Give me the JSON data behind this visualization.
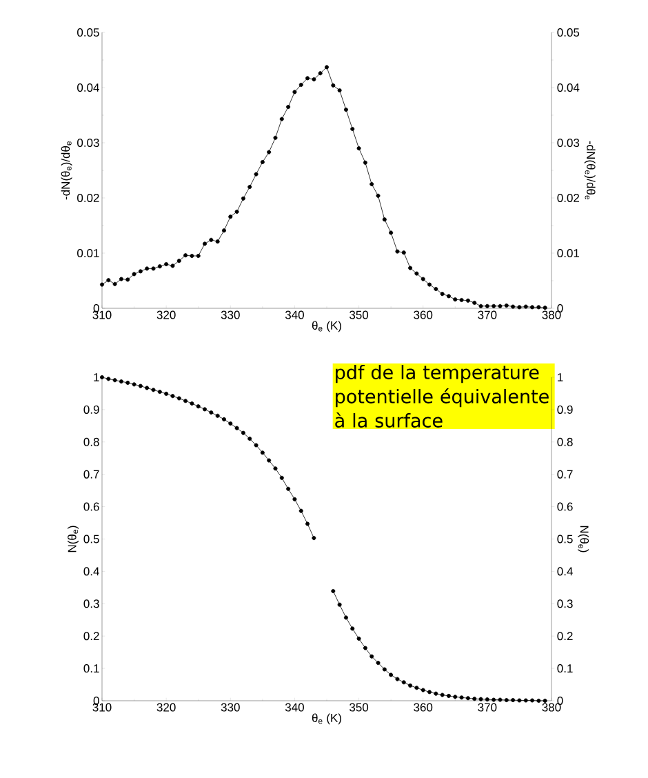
{
  "chart_data": [
    {
      "type": "line",
      "xlabel": "θ$_{e}$ (K)",
      "ylabel": "-dN(θ$_{e}$)/dθ$_{e}$",
      "y2label": "-dN(θ$_{e}$)/dθ$_{e}$",
      "x": [
        310,
        311,
        312,
        313,
        314,
        315,
        316,
        317,
        318,
        319,
        320,
        321,
        322,
        323,
        324,
        325,
        326,
        327,
        328,
        329,
        330,
        331,
        332,
        333,
        334,
        335,
        336,
        337,
        338,
        339,
        340,
        341,
        342,
        343,
        344,
        345,
        346,
        347,
        348,
        349,
        350,
        351,
        352,
        353,
        354,
        355,
        356,
        357,
        358,
        359,
        360,
        361,
        362,
        363,
        364,
        365,
        366,
        367,
        368,
        369,
        370,
        371,
        372,
        373,
        374,
        375,
        376,
        377,
        378,
        379
      ],
      "series": [
        {
          "color": "#000000",
          "values": [
            0.0043,
            0.0051,
            0.0044,
            0.0053,
            0.0052,
            0.0062,
            0.0067,
            0.0072,
            0.0072,
            0.0076,
            0.008,
            0.0077,
            0.0086,
            0.0096,
            0.0095,
            0.0095,
            0.0117,
            0.0124,
            0.0121,
            0.0141,
            0.0166,
            0.0175,
            0.0199,
            0.022,
            0.0243,
            0.0265,
            0.0283,
            0.0309,
            0.0343,
            0.0365,
            0.0392,
            0.0405,
            0.0417,
            0.0415,
            0.0426,
            0.0437,
            0.0404,
            0.0395,
            0.036,
            0.0325,
            0.029,
            0.0264,
            0.0225,
            0.0204,
            0.0161,
            0.0137,
            0.0103,
            0.0101,
            0.0073,
            0.0063,
            0.0053,
            0.0043,
            0.0035,
            0.0026,
            0.0022,
            0.0016,
            0.0015,
            0.0014,
            0.001,
            0.0004,
            0.0004,
            0.0004,
            0.0004,
            0.0005,
            0.0003,
            0.0002,
            0.0003,
            0.0002,
            0.0002,
            0.0001
          ]
        }
      ],
      "xlim": [
        310,
        380
      ],
      "xticks": [
        310,
        320,
        330,
        340,
        350,
        360,
        370,
        380
      ],
      "ylim": [
        0,
        0.05
      ],
      "yticks": [
        0,
        0.01,
        0.02,
        0.03,
        0.04,
        0.05
      ],
      "y2lim": [
        0,
        0.05
      ],
      "y2ticks": [
        0,
        0.01,
        0.02,
        0.03,
        0.04,
        0.05
      ],
      "marker": "circle",
      "line_style": "solid"
    },
    {
      "type": "line",
      "xlabel": "θ$_{e}$ (K)",
      "ylabel": "N(θ$_{e}$)",
      "y2label": "N(θ$_{e}$)",
      "x": [
        310,
        311,
        312,
        313,
        314,
        315,
        316,
        317,
        318,
        319,
        320,
        321,
        322,
        323,
        324,
        325,
        326,
        327,
        328,
        329,
        330,
        331,
        332,
        333,
        334,
        335,
        336,
        337,
        338,
        339,
        340,
        341,
        342,
        343,
        344,
        345,
        346,
        347,
        348,
        349,
        350,
        351,
        352,
        353,
        354,
        355,
        356,
        357,
        358,
        359,
        360,
        361,
        362,
        363,
        364,
        365,
        366,
        367,
        368,
        369,
        370,
        371,
        372,
        373,
        374,
        375,
        376,
        377,
        378,
        379
      ],
      "series": [
        {
          "color": "#000000",
          "values": [
            1.0,
            0.995,
            0.991,
            0.987,
            0.983,
            0.978,
            0.973,
            0.967,
            0.961,
            0.955,
            0.949,
            0.942,
            0.935,
            0.927,
            0.919,
            0.91,
            0.901,
            0.891,
            0.881,
            0.87,
            0.857,
            0.843,
            0.828,
            0.81,
            0.79,
            0.767,
            0.743,
            0.718,
            0.689,
            0.655,
            0.623,
            0.587,
            0.547,
            0.503,
            null,
            null,
            0.339,
            0.297,
            0.257,
            0.223,
            0.192,
            0.163,
            0.137,
            0.117,
            0.097,
            0.08,
            0.067,
            0.057,
            0.047,
            0.04,
            0.033,
            0.027,
            0.022,
            0.018,
            0.015,
            0.012,
            0.01,
            0.008,
            0.006,
            0.005,
            0.004,
            0.003,
            0.003,
            0.002,
            0.002,
            0.001,
            0.001,
            0.001,
            0.0,
            0.0
          ]
        }
      ],
      "xlim": [
        310,
        380
      ],
      "xticks": [
        310,
        320,
        330,
        340,
        350,
        360,
        370,
        380
      ],
      "ylim": [
        0,
        1
      ],
      "yticks": [
        0,
        0.1,
        0.2,
        0.3,
        0.4,
        0.5,
        0.6,
        0.7,
        0.8,
        0.9,
        1
      ],
      "y2lim": [
        0,
        1
      ],
      "y2ticks": [
        0,
        0.1,
        0.2,
        0.3,
        0.4,
        0.5,
        0.6,
        0.7,
        0.8,
        0.9,
        1
      ],
      "marker": "circle",
      "line_style": "solid",
      "annotations": [
        "pdf de la temperature potentielle équivalente à la surface"
      ]
    }
  ]
}
